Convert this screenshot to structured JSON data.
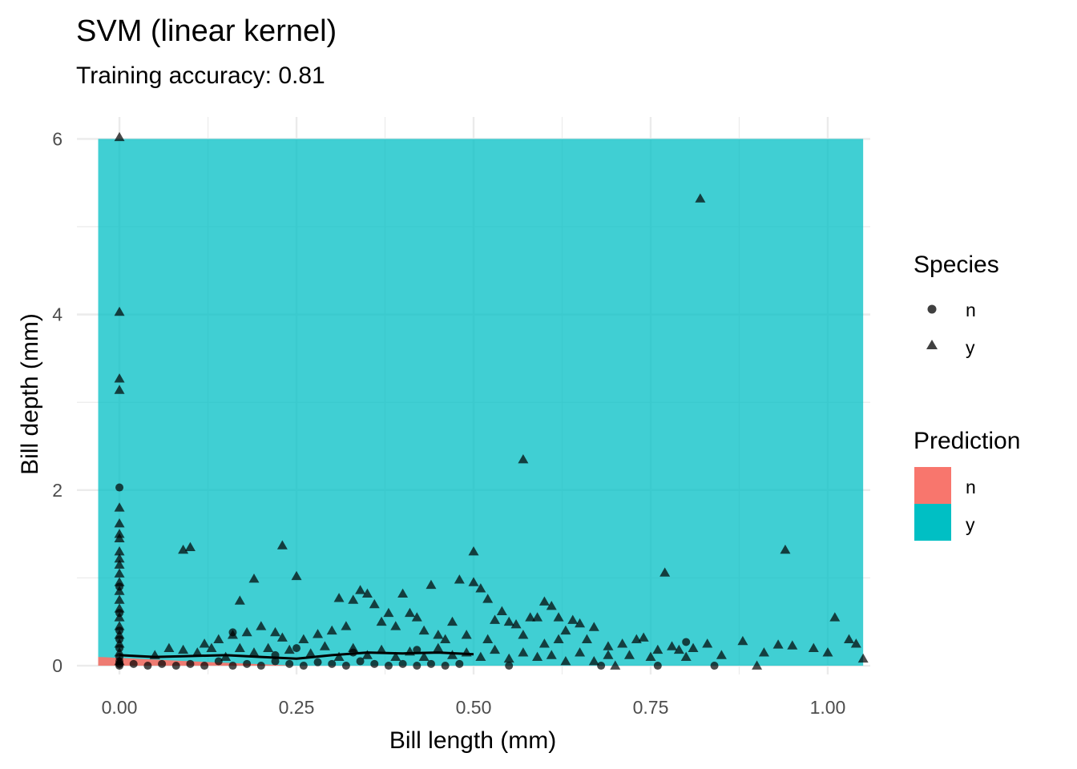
{
  "chart_data": {
    "type": "scatter",
    "title": "SVM (linear kernel)",
    "subtitle": "Training accuracy: 0.81",
    "xlabel": "Bill length (mm)",
    "ylabel": "Bill depth (mm)",
    "xlim": [
      -0.06,
      1.06
    ],
    "ylim": [
      -0.1,
      6.25
    ],
    "x_ticks": [
      0,
      0.25,
      0.5,
      0.75,
      1.0
    ],
    "x_tick_labels": [
      "0.00",
      "0.25",
      "0.50",
      "0.75",
      "1.00"
    ],
    "y_ticks": [
      0,
      2,
      4,
      6
    ],
    "y_tick_labels": [
      "0",
      "2",
      "4",
      "6"
    ],
    "grid": true,
    "legend_position": "right",
    "colors": {
      "prediction_n": "#F8766D",
      "prediction_y": "#00BFC4",
      "grid": "#EBEBEB",
      "points": "#000000"
    },
    "decision_regions": {
      "x_range": [
        -0.03,
        1.05
      ],
      "y_range": [
        0,
        6.0
      ],
      "n_region_boundary": [
        [
          -0.03,
          0.1
        ],
        [
          0.1,
          0.05
        ],
        [
          0.25,
          0.0
        ],
        [
          -0.03,
          0.0
        ]
      ]
    },
    "fit_line": [
      [
        0.0,
        0.12
      ],
      [
        0.05,
        0.1
      ],
      [
        0.1,
        0.11
      ],
      [
        0.15,
        0.12
      ],
      [
        0.2,
        0.1
      ],
      [
        0.25,
        0.08
      ],
      [
        0.3,
        0.12
      ],
      [
        0.35,
        0.15
      ],
      [
        0.4,
        0.14
      ],
      [
        0.45,
        0.15
      ],
      [
        0.5,
        0.13
      ]
    ],
    "legends": {
      "species": {
        "title": "Species",
        "items": [
          {
            "label": "n",
            "shape": "circle"
          },
          {
            "label": "y",
            "shape": "triangle"
          }
        ]
      },
      "prediction": {
        "title": "Prediction",
        "items": [
          {
            "label": "n",
            "color": "#F8766D"
          },
          {
            "label": "y",
            "color": "#00BFC4"
          }
        ]
      }
    },
    "series": [
      {
        "name": "y",
        "shape": "triangle",
        "points": [
          [
            0,
            6.02
          ],
          [
            0,
            4.03
          ],
          [
            0,
            3.27
          ],
          [
            0,
            3.14
          ],
          [
            0,
            1.8
          ],
          [
            0,
            1.62
          ],
          [
            0,
            1.5
          ],
          [
            0,
            1.45
          ],
          [
            0,
            1.3
          ],
          [
            0,
            1.22
          ],
          [
            0,
            1.15
          ],
          [
            0,
            1.05
          ],
          [
            0,
            0.95
          ],
          [
            0,
            0.85
          ],
          [
            0,
            0.75
          ],
          [
            0,
            0.65
          ],
          [
            0,
            0.55
          ],
          [
            0,
            0.45
          ],
          [
            0,
            0.35
          ],
          [
            0,
            0.25
          ],
          [
            0,
            0.15
          ],
          [
            0,
            0.05
          ],
          [
            0.82,
            5.32
          ],
          [
            0.57,
            2.35
          ],
          [
            0.09,
            1.32
          ],
          [
            0.1,
            1.35
          ],
          [
            0.23,
            1.37
          ],
          [
            0.5,
            1.3
          ],
          [
            0.94,
            1.32
          ],
          [
            0.77,
            1.06
          ],
          [
            0.25,
            1.02
          ],
          [
            0.19,
            0.99
          ],
          [
            0.44,
            0.92
          ],
          [
            0.48,
            0.98
          ],
          [
            0.5,
            0.95
          ],
          [
            0.51,
            0.88
          ],
          [
            0.52,
            0.76
          ],
          [
            0.17,
            0.74
          ],
          [
            0.31,
            0.77
          ],
          [
            0.34,
            0.86
          ],
          [
            0.35,
            0.82
          ],
          [
            0.33,
            0.75
          ],
          [
            0.36,
            0.7
          ],
          [
            0.38,
            0.6
          ],
          [
            0.4,
            0.82
          ],
          [
            0.41,
            0.6
          ],
          [
            0.42,
            0.55
          ],
          [
            0.47,
            0.5
          ],
          [
            0.54,
            0.62
          ],
          [
            0.6,
            0.73
          ],
          [
            0.61,
            0.68
          ],
          [
            0.58,
            0.55
          ],
          [
            0.59,
            0.55
          ],
          [
            0.64,
            0.52
          ],
          [
            0.65,
            0.48
          ],
          [
            0.67,
            0.44
          ],
          [
            0.56,
            0.47
          ],
          [
            0.55,
            0.5
          ],
          [
            0.53,
            0.52
          ],
          [
            0.3,
            0.4
          ],
          [
            0.22,
            0.38
          ],
          [
            0.18,
            0.38
          ],
          [
            0.16,
            0.35
          ],
          [
            0.12,
            0.25
          ],
          [
            0.14,
            0.3
          ],
          [
            0.2,
            0.45
          ],
          [
            0.23,
            0.32
          ],
          [
            0.26,
            0.3
          ],
          [
            0.28,
            0.36
          ],
          [
            0.32,
            0.45
          ],
          [
            0.37,
            0.5
          ],
          [
            0.39,
            0.45
          ],
          [
            0.43,
            0.4
          ],
          [
            0.45,
            0.35
          ],
          [
            0.46,
            0.3
          ],
          [
            0.49,
            0.35
          ],
          [
            0.52,
            0.3
          ],
          [
            0.57,
            0.35
          ],
          [
            0.6,
            0.25
          ],
          [
            0.62,
            0.3
          ],
          [
            0.63,
            0.4
          ],
          [
            0.66,
            0.3
          ],
          [
            0.69,
            0.22
          ],
          [
            0.71,
            0.25
          ],
          [
            0.73,
            0.3
          ],
          [
            0.74,
            0.32
          ],
          [
            0.76,
            0.18
          ],
          [
            0.78,
            0.22
          ],
          [
            0.79,
            0.18
          ],
          [
            0.81,
            0.2
          ],
          [
            0.83,
            0.25
          ],
          [
            0.85,
            0.12
          ],
          [
            0.88,
            0.28
          ],
          [
            0.91,
            0.15
          ],
          [
            0.93,
            0.24
          ],
          [
            0.95,
            0.23
          ],
          [
            0.98,
            0.2
          ],
          [
            1.0,
            0.15
          ],
          [
            1.01,
            0.55
          ],
          [
            1.03,
            0.3
          ],
          [
            1.04,
            0.25
          ],
          [
            1.05,
            0.08
          ],
          [
            0.05,
            0.12
          ],
          [
            0.07,
            0.2
          ],
          [
            0.09,
            0.18
          ],
          [
            0.11,
            0.15
          ],
          [
            0.13,
            0.2
          ],
          [
            0.15,
            0.1
          ],
          [
            0.17,
            0.2
          ],
          [
            0.19,
            0.15
          ],
          [
            0.21,
            0.2
          ],
          [
            0.24,
            0.18
          ],
          [
            0.27,
            0.14
          ],
          [
            0.29,
            0.22
          ],
          [
            0.31,
            0.1
          ],
          [
            0.33,
            0.2
          ],
          [
            0.35,
            0.12
          ],
          [
            0.37,
            0.18
          ],
          [
            0.39,
            0.1
          ],
          [
            0.41,
            0.16
          ],
          [
            0.43,
            0.1
          ],
          [
            0.45,
            0.2
          ],
          [
            0.47,
            0.12
          ],
          [
            0.49,
            0.15
          ],
          [
            0.51,
            0.1
          ],
          [
            0.53,
            0.18
          ],
          [
            0.55,
            0.08
          ],
          [
            0.57,
            0.15
          ],
          [
            0.59,
            0.1
          ],
          [
            0.61,
            0.12
          ],
          [
            0.63,
            0.05
          ],
          [
            0.65,
            0.15
          ],
          [
            0.67,
            0.05
          ],
          [
            0.69,
            0.12
          ],
          [
            0.7,
            0.0
          ],
          [
            0.72,
            0.12
          ],
          [
            0.75,
            0.1
          ],
          [
            0.8,
            0.1
          ],
          [
            0.9,
            0.0
          ],
          [
            0.62,
            0.55
          ]
        ]
      },
      {
        "name": "n",
        "shape": "circle",
        "points": [
          [
            0,
            2.03
          ],
          [
            0,
            0.9
          ],
          [
            0,
            0.6
          ],
          [
            0,
            0.4
          ],
          [
            0,
            0.3
          ],
          [
            0,
            0.2
          ],
          [
            0,
            0.1
          ],
          [
            0,
            0.05
          ],
          [
            0,
            0.02
          ],
          [
            0,
            0.0
          ],
          [
            0.02,
            0.02
          ],
          [
            0.04,
            0.0
          ],
          [
            0.06,
            0.02
          ],
          [
            0.08,
            0.0
          ],
          [
            0.1,
            0.02
          ],
          [
            0.12,
            0.0
          ],
          [
            0.14,
            0.05
          ],
          [
            0.16,
            0.0
          ],
          [
            0.16,
            0.38
          ],
          [
            0.18,
            0.02
          ],
          [
            0.2,
            0.0
          ],
          [
            0.22,
            0.05
          ],
          [
            0.24,
            0.02
          ],
          [
            0.26,
            0.0
          ],
          [
            0.28,
            0.04
          ],
          [
            0.3,
            0.02
          ],
          [
            0.32,
            0.0
          ],
          [
            0.34,
            0.05
          ],
          [
            0.36,
            0.02
          ],
          [
            0.38,
            0.0
          ],
          [
            0.4,
            0.02
          ],
          [
            0.42,
            0.0
          ],
          [
            0.44,
            0.02
          ],
          [
            0.46,
            0.0
          ],
          [
            0.48,
            0.02
          ],
          [
            0.55,
            0.0
          ],
          [
            0.68,
            0.0
          ],
          [
            0.76,
            0.0
          ],
          [
            0.8,
            0.27
          ],
          [
            0.84,
            0.0
          ],
          [
            0.25,
            0.2
          ],
          [
            0.33,
            0.15
          ],
          [
            0.42,
            0.18
          ],
          [
            0.22,
            0.12
          ]
        ]
      }
    ]
  }
}
